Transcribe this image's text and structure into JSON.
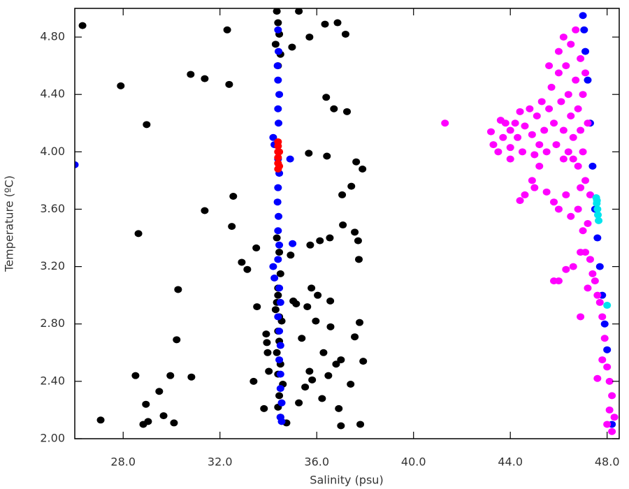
{
  "chart_data": {
    "type": "scatter",
    "x_label": "Salinity (psu)",
    "y_label": "Temperature (ºC)",
    "xlim": [
      26.0,
      48.5
    ],
    "ylim": [
      2.0,
      5.0
    ],
    "xticks": [
      {
        "value": 28,
        "label": "28.0"
      },
      {
        "value": 32,
        "label": "32.0"
      },
      {
        "value": 36,
        "label": "36.0"
      },
      {
        "value": 40,
        "label": "40.0"
      },
      {
        "value": 44,
        "label": "44.0"
      },
      {
        "value": 48,
        "label": "48.0"
      }
    ],
    "yticks": [
      {
        "value": 2.0,
        "label": "2.00"
      },
      {
        "value": 2.4,
        "label": "2.40"
      },
      {
        "value": 2.8,
        "label": "2.80"
      },
      {
        "value": 3.2,
        "label": "3.20"
      },
      {
        "value": 3.6,
        "label": "3.60"
      },
      {
        "value": 4.0,
        "label": "4.00"
      },
      {
        "value": 4.4,
        "label": "4.40"
      },
      {
        "value": 4.8,
        "label": "4.80"
      }
    ],
    "series": [
      {
        "color": "#000000",
        "x": [
          26.32,
          27.07,
          27.9,
          28.63,
          28.51,
          28.83,
          28.94,
          28.97,
          29.03,
          29.49,
          29.67,
          29.95,
          30.1,
          30.21,
          30.27,
          30.79,
          30.82,
          31.37,
          31.37,
          32.3,
          32.38,
          32.49,
          32.55,
          32.9,
          33.13,
          33.39,
          33.5,
          33.53,
          33.82,
          33.91,
          33.94,
          33.97,
          34.02,
          35.26,
          34.98,
          35.7,
          34.92,
          35.03,
          35.15,
          35.26,
          35.38,
          35.52,
          35.67,
          35.7,
          35.78,
          35.61,
          35.81,
          35.96,
          36.04,
          36.13,
          36.22,
          36.34,
          36.39,
          36.42,
          36.48,
          36.54,
          36.56,
          36.71,
          36.86,
          36.91,
          37.0,
          37.05,
          37.08,
          37.19,
          37.25,
          37.4,
          37.57,
          37.57,
          37.63,
          37.71,
          37.74,
          37.77,
          37.89,
          37.92,
          37.8,
          37.0,
          34.75,
          37.43,
          36.8,
          36.28,
          36.57,
          35.73,
          34.35,
          34.4,
          34.45,
          34.3,
          34.5,
          34.4,
          34.35,
          34.45,
          34.5,
          34.4,
          34.3,
          34.55,
          34.4,
          34.45,
          34.35,
          34.5,
          34.4,
          34.6,
          34.45,
          34.4,
          34.5,
          34.35,
          34.4,
          34.45
        ],
        "y": [
          4.88,
          2.13,
          4.46,
          3.43,
          2.44,
          2.1,
          2.24,
          4.19,
          2.12,
          2.33,
          2.16,
          2.44,
          2.11,
          2.69,
          3.04,
          4.54,
          2.43,
          4.51,
          3.59,
          4.85,
          4.47,
          3.48,
          3.69,
          3.23,
          3.18,
          2.4,
          3.33,
          2.92,
          2.21,
          2.73,
          2.67,
          2.6,
          2.47,
          4.98,
          4.73,
          4.8,
          3.28,
          2.96,
          2.94,
          2.25,
          2.7,
          2.36,
          3.99,
          2.47,
          3.05,
          2.92,
          2.41,
          2.82,
          3.0,
          3.38,
          2.28,
          4.89,
          4.38,
          3.97,
          2.44,
          3.4,
          2.96,
          4.3,
          4.9,
          2.21,
          2.55,
          3.7,
          3.49,
          4.82,
          4.28,
          2.38,
          3.44,
          2.71,
          3.93,
          3.38,
          3.25,
          2.81,
          3.88,
          2.54,
          2.1,
          2.09,
          2.11,
          3.76,
          2.52,
          2.6,
          2.78,
          3.35,
          4.98,
          4.9,
          4.82,
          4.75,
          4.68,
          4.6,
          3.4,
          3.3,
          3.15,
          3.0,
          2.9,
          2.82,
          2.75,
          2.68,
          2.6,
          2.52,
          2.45,
          2.38,
          2.3,
          2.22,
          2.15,
          2.95,
          3.05,
          2.85
        ]
      },
      {
        "color": "#0000ff",
        "x": [
          34.4,
          34.42,
          34.38,
          34.4,
          34.45,
          34.4,
          34.42,
          34.2,
          34.25,
          34.4,
          34.45,
          34.4,
          34.38,
          34.42,
          34.4,
          34.45,
          34.4,
          34.2,
          34.25,
          34.45,
          34.5,
          34.4,
          34.45,
          34.5,
          34.45,
          34.5,
          34.5,
          34.55,
          34.5,
          34.55,
          26.0,
          34.9,
          35.0,
          47.0,
          47.05,
          47.1,
          47.2,
          47.3,
          47.4,
          47.5,
          47.6,
          47.7,
          47.8,
          47.9,
          48.0,
          48.2
        ],
        "y": [
          4.85,
          4.7,
          4.6,
          4.5,
          4.4,
          4.3,
          4.2,
          4.1,
          4.05,
          3.95,
          3.85,
          3.75,
          3.65,
          3.55,
          3.45,
          3.35,
          3.25,
          3.2,
          3.12,
          3.05,
          2.95,
          2.85,
          2.75,
          2.65,
          2.55,
          2.45,
          2.35,
          2.25,
          2.15,
          2.12,
          3.91,
          3.95,
          3.36,
          4.95,
          4.85,
          4.7,
          4.5,
          4.2,
          3.9,
          3.6,
          3.4,
          3.2,
          3.0,
          2.8,
          2.62,
          2.1
        ]
      },
      {
        "color": "#ff0000",
        "x": [
          34.4,
          34.4,
          34.4,
          34.4,
          34.4,
          34.4,
          34.45,
          34.45
        ],
        "y": [
          3.88,
          3.92,
          3.96,
          4.0,
          4.04,
          4.07,
          3.9,
          4.0
        ]
      },
      {
        "color": "#ff00ff",
        "x": [
          41.3,
          43.2,
          43.3,
          43.5,
          43.7,
          43.8,
          44.0,
          44.0,
          44.2,
          44.3,
          44.4,
          44.5,
          44.6,
          44.8,
          44.9,
          45.0,
          45.1,
          45.2,
          45.3,
          45.4,
          45.5,
          45.6,
          45.7,
          45.8,
          45.9,
          46.0,
          46.1,
          46.2,
          46.2,
          46.3,
          46.4,
          46.5,
          46.5,
          46.6,
          46.7,
          46.7,
          46.8,
          46.8,
          46.9,
          46.9,
          47.0,
          47.0,
          47.1,
          47.1,
          47.2,
          46.6,
          47.3,
          47.2,
          46.9,
          44.4,
          44.6,
          45.0,
          45.5,
          45.8,
          46.0,
          46.3,
          46.5,
          46.8,
          47.0,
          46.9,
          47.1,
          47.3,
          46.6,
          46.3,
          46.0,
          45.8,
          47.4,
          47.5,
          47.6,
          47.2,
          47.7,
          46.9,
          47.8,
          47.9,
          47.8,
          48.0,
          48.1,
          47.6,
          48.2,
          48.1,
          48.3,
          48.0,
          48.2,
          44.9,
          45.2,
          46.4,
          46.0,
          46.2,
          45.6,
          44.0,
          43.6
        ],
        "y": [
          4.2,
          4.14,
          4.05,
          4.0,
          4.1,
          4.2,
          4.15,
          4.03,
          4.2,
          4.1,
          4.28,
          4.0,
          4.18,
          4.3,
          4.12,
          3.98,
          4.25,
          4.05,
          4.35,
          4.15,
          4.0,
          4.3,
          4.45,
          4.2,
          4.05,
          4.55,
          4.35,
          4.15,
          3.95,
          4.6,
          4.4,
          4.25,
          4.75,
          4.1,
          4.5,
          4.85,
          4.3,
          3.9,
          4.65,
          4.15,
          4.4,
          4.0,
          4.55,
          3.8,
          4.2,
          3.95,
          3.7,
          3.5,
          3.75,
          3.66,
          3.7,
          3.75,
          3.72,
          3.65,
          3.6,
          3.7,
          3.55,
          3.6,
          3.45,
          3.3,
          3.3,
          3.25,
          3.2,
          3.18,
          3.1,
          3.1,
          3.15,
          3.1,
          3.0,
          3.05,
          2.95,
          2.85,
          2.85,
          2.7,
          2.55,
          2.5,
          2.4,
          2.42,
          2.3,
          2.2,
          2.15,
          2.1,
          2.05,
          3.8,
          3.9,
          4.0,
          4.7,
          4.8,
          4.6,
          3.95,
          4.22
        ]
      },
      {
        "color": "#00e5ee",
        "x": [
          47.55,
          47.57,
          47.6,
          47.62,
          47.65,
          47.58,
          48.0
        ],
        "y": [
          3.68,
          3.64,
          3.6,
          3.56,
          3.52,
          3.66,
          2.93
        ]
      }
    ]
  }
}
